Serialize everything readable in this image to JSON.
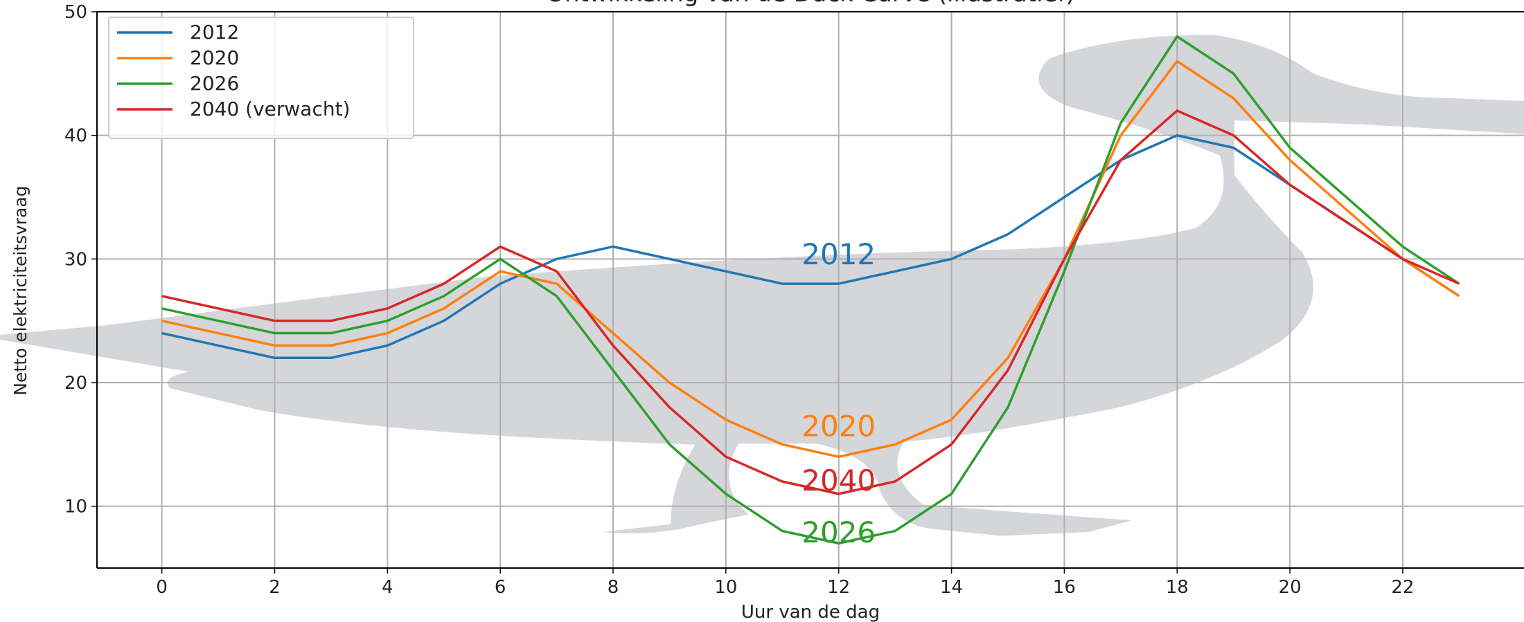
{
  "chart_data": {
    "type": "line",
    "title": "Ontwikkeling van de Duck Curve (illustratief)",
    "x_label": "Uur van de dag",
    "y_label": "Netto elektriciteitsvraag",
    "x": [
      0,
      1,
      2,
      3,
      4,
      5,
      6,
      7,
      8,
      9,
      10,
      11,
      12,
      13,
      14,
      15,
      16,
      17,
      18,
      19,
      20,
      21,
      22,
      23
    ],
    "series": [
      {
        "name": "2012",
        "color": "#1f77b4",
        "values": [
          24,
          23,
          22,
          22,
          23,
          25,
          28,
          30,
          31,
          30,
          29,
          28,
          28,
          29,
          30,
          32,
          35,
          38,
          40,
          39,
          36,
          33,
          30,
          27
        ]
      },
      {
        "name": "2020",
        "color": "#ff7f0e",
        "values": [
          25,
          24,
          23,
          23,
          24,
          26,
          29,
          28,
          24,
          20,
          17,
          15,
          14,
          15,
          17,
          22,
          30,
          40,
          46,
          43,
          38,
          34,
          30,
          27
        ]
      },
      {
        "name": "2026",
        "color": "#2ca02c",
        "values": [
          26,
          25,
          24,
          24,
          25,
          27,
          30,
          27,
          21,
          15,
          11,
          8,
          7,
          8,
          11,
          18,
          29,
          41,
          48,
          45,
          39,
          35,
          31,
          28
        ]
      },
      {
        "name": "2040 (verwacht)",
        "color": "#d62728",
        "values": [
          27,
          26,
          25,
          25,
          26,
          28,
          31,
          29,
          23,
          18,
          14,
          12,
          11,
          12,
          15,
          21,
          30,
          38,
          42,
          40,
          36,
          33,
          30,
          28
        ]
      }
    ],
    "annotations": [
      {
        "text": "2012",
        "color": "#1f77b4"
      },
      {
        "text": "2020",
        "color": "#ff7f0e"
      },
      {
        "text": "2040",
        "color": "#d62728"
      },
      {
        "text": "2026",
        "color": "#2ca02c"
      }
    ],
    "xlim": [
      -1.15,
      24.15
    ],
    "ylim": [
      5,
      50
    ],
    "xticks": [
      0,
      2,
      4,
      6,
      8,
      10,
      12,
      14,
      16,
      18,
      20,
      22
    ],
    "yticks": [
      10,
      20,
      30,
      40,
      50
    ],
    "grid": true,
    "legend": "upper left"
  }
}
